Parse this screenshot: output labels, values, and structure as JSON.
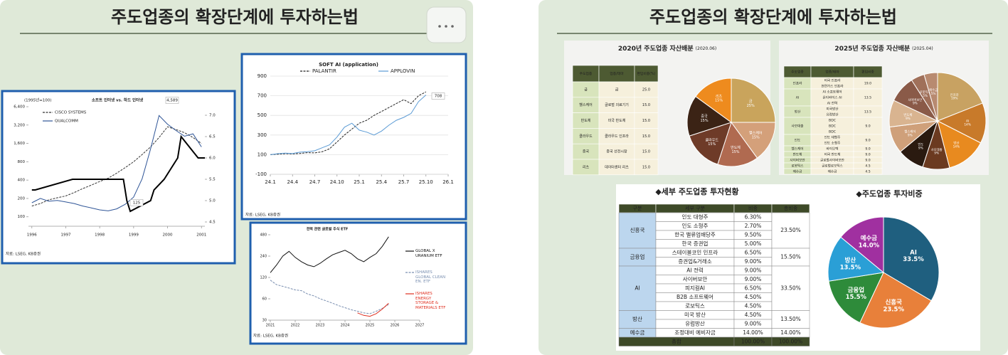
{
  "left_panel": {
    "title": "주도업종의 확장단계에 투자하는법",
    "charts": [
      {
        "type": "line",
        "title": "소프트 인터넷 vs. 하드 인터넷",
        "note": "(1995년=100)",
        "log": true,
        "x": [
          1996,
          1996.25,
          1996.5,
          1996.75,
          1997,
          1997.25,
          1997.5,
          1997.75,
          1998,
          1998.25,
          1998.5,
          1998.75,
          1999,
          1999.25,
          1999.5,
          1999.75,
          2000,
          2000.25,
          2000.5,
          2000.75,
          2001
        ],
        "xlim": [
          1995.9,
          2001.1
        ],
        "xticks": [
          1996,
          1997,
          1998,
          1999,
          2000,
          2001
        ],
        "ylim": [
          70,
          6400
        ],
        "yticks": [
          {
            "value": 6400,
            "label": "6,400"
          },
          {
            "value": 3200,
            "label": "3,200"
          },
          {
            "value": 1600,
            "label": "1,600"
          },
          800,
          400,
          200,
          100
        ],
        "y2lim": [
          4.4,
          7.2
        ],
        "y2ticks": [
          {
            "value": 7,
            "label": "7.0"
          },
          6.5,
          {
            "value": 6,
            "label": "6.0"
          },
          5.5,
          {
            "value": 5,
            "label": "5.0"
          },
          4.5
        ],
        "series": [
          {
            "name": "CISCO SYSTEMS",
            "color": "#333333",
            "dashed": true,
            "values": [
              150,
              165,
              190,
              205,
              220,
              250,
              290,
              330,
              380,
              430,
              520,
              640,
              800,
              1050,
              1400,
              2000,
              3000,
              2700,
              2400,
              2000,
              1600
            ]
          },
          {
            "name": "QUALCOMM",
            "color": "#2f5597",
            "values": [
              170,
              200,
              180,
              185,
              175,
              165,
              150,
              140,
              130,
              125,
              135,
              160,
              210,
              420,
              1300,
              4589,
              3300,
              2600,
              2100,
              2300,
              1400
            ]
          },
          {
            "color": "#000000",
            "axis": "y2",
            "x": [
              1996,
              1996.1,
              1997.2,
              1998.7,
              1998.8,
              1998.9,
              1999.5,
              1999.6,
              1999.9,
              2000.1,
              2000.3,
              2000.4,
              2000.9,
              2001.1
            ],
            "values": [
              5.25,
              5.25,
              5.5,
              5.5,
              5.0,
              4.75,
              5.0,
              5.25,
              5.5,
              5.75,
              6.0,
              6.5,
              6.0,
              6.0
            ]
          }
        ],
        "annotations": [
          "4,589",
          "125"
        ],
        "source": "자료: LSEG, KB증권"
      },
      {
        "type": "line",
        "title": "SOFT AI (application)",
        "grid": true,
        "x": [
          0,
          1,
          2,
          3,
          4,
          5,
          6,
          7,
          8,
          9,
          10,
          11,
          12,
          13,
          14,
          15,
          16,
          17,
          18,
          19,
          20,
          21
        ],
        "xlim": [
          0,
          24
        ],
        "xticks": [
          {
            "value": 0,
            "label": "24.1"
          },
          {
            "value": 3,
            "label": "24.4"
          },
          {
            "value": 6,
            "label": "24.7"
          },
          {
            "value": 9,
            "label": "24.10"
          },
          {
            "value": 12,
            "label": "25.1"
          },
          {
            "value": 15,
            "label": "25.4"
          },
          {
            "value": 18,
            "label": "25.7"
          },
          {
            "value": 21,
            "label": "25.10"
          },
          {
            "value": 24,
            "label": "26.1"
          }
        ],
        "ylim": [
          -100,
          900
        ],
        "yticks": [
          900,
          700,
          500,
          300,
          100,
          -100
        ],
        "series": [
          {
            "name": "PALANTIR",
            "color": "#222222",
            "dashed": true,
            "values": [
              100,
              105,
              110,
              108,
              112,
              120,
              118,
              130,
              160,
              230,
              300,
              360,
              420,
              450,
              500,
              540,
              580,
              620,
              660,
              620,
              700,
              740
            ]
          },
          {
            "name": "APPLOVIN",
            "color": "#5b9bd5",
            "values": [
              100,
              110,
              115,
              112,
              125,
              130,
              140,
              170,
              200,
              280,
              380,
              420,
              350,
              330,
              300,
              340,
              400,
              450,
              480,
              520,
              640,
              708
            ]
          }
        ],
        "annotations": [
          "708"
        ],
        "source": "자료: LSEG, KB증권"
      },
      {
        "type": "line",
        "title": "전력 관련 글로벌 주식 ETF",
        "log": true,
        "x": [
          2021,
          2021.25,
          2021.5,
          2021.75,
          2022,
          2022.25,
          2022.5,
          2022.75,
          2023,
          2023.25,
          2023.5,
          2023.75,
          2024,
          2024.25,
          2024.5,
          2024.75,
          2025,
          2025.25,
          2025.5,
          2025.75
        ],
        "xlim": [
          2021,
          2027
        ],
        "xticks": [
          2021,
          2022,
          2023,
          2024,
          2025,
          2026,
          2027
        ],
        "ylim": [
          30,
          480
        ],
        "yticks": [
          480,
          240,
          120,
          60,
          30
        ],
        "series": [
          {
            "name": "GLOBAL X URANIUM ETF",
            "color": "#111111",
            "values": [
              140,
              180,
              240,
              280,
              230,
              200,
              180,
              170,
              190,
              220,
              250,
              270,
              290,
              260,
              220,
              200,
              230,
              260,
              330,
              450
            ]
          },
          {
            "name": "ISHARES GLOBAL CLEAN EN. ETF",
            "color": "#7a8fb0",
            "dashed": true,
            "values": [
              110,
              95,
              90,
              85,
              80,
              78,
              70,
              66,
              60,
              56,
              52,
              48,
              45,
              42,
              40,
              38,
              37,
              40,
              44,
              50
            ]
          },
          {
            "name": "ISHARES ENERGY STORAGE & MATERIALS ETF",
            "color": "#e03020",
            "values": [
              null,
              null,
              null,
              null,
              null,
              null,
              null,
              null,
              null,
              null,
              null,
              null,
              null,
              null,
              38,
              35,
              34,
              37,
              43,
              52
            ]
          }
        ],
        "source": "자료: LSEG, KB증권"
      }
    ]
  },
  "right_panel": {
    "title": "주도업종의 확장단계에 투자하는법",
    "allocation_2020": {
      "title": "2020년 주도업종 자산배분",
      "date": "(2020.06)",
      "headers": [
        "주도업종",
        "업종/테마",
        "편입비중(%)"
      ],
      "rows": [
        [
          "금",
          "금",
          "25.0"
        ],
        [
          "헬스케어",
          "글로벌 의료기기",
          "15.0"
        ],
        [
          "반도체",
          "미국 반도체",
          "15.0"
        ],
        [
          "클라우드",
          "클라우드 인프라",
          "15.0"
        ],
        [
          "중국",
          "중국 선전시장",
          "15.0"
        ],
        [
          "리츠",
          "데이터센터 리츠",
          "15.0"
        ]
      ],
      "pie": {
        "type": "pie",
        "labels": [
          "금",
          "헬스케어",
          "반도체",
          "클라우드",
          "중국",
          "리츠"
        ],
        "values": [
          25,
          15,
          15,
          15,
          15,
          15
        ],
        "value_labels": [
          "25%",
          "15%",
          "15%",
          "15%",
          "15%",
          "15%"
        ],
        "colors": [
          "#c9a45c",
          "#d4a07a",
          "#b06a50",
          "#6e3b28",
          "#3b2315",
          "#ee8b1e"
        ]
      }
    },
    "allocation_2025": {
      "title": "2025년 주도업종 자산배분",
      "date": "(2025.04)",
      "headers": [
        "주도업종",
        "업종/테마",
        "편입비중"
      ],
      "rows": [
        [
          "인프라",
          [
            "미국 인프라",
            "천연가스 인프라"
          ],
          "19.0"
        ],
        [
          "AI",
          [
            "AI 소프트웨어",
            "온디바이스 AI",
            "AI 전력"
          ],
          "13.5"
        ],
        [
          "방산",
          [
            "미국방산",
            "유럽방산"
          ],
          "13.5"
        ],
        [
          "사모대출",
          [
            "BDC",
            "BDC",
            "BDC"
          ],
          "9.0"
        ],
        [
          "인도",
          [
            "인도 대형주",
            "인도 소형주"
          ],
          "9.0"
        ],
        [
          "헬스케어",
          [
            "바이오텍"
          ],
          "9.0"
        ],
        [
          "반도체",
          [
            "미국 반도체"
          ],
          "9.0"
        ],
        [
          "사이버보안",
          [
            "글로벌사이버보안"
          ],
          "9.0"
        ],
        [
          "로봇틱스",
          [
            "글로벌로보틱스"
          ],
          "4.5"
        ],
        [
          "예수금",
          [
            "예수금"
          ],
          "4.5"
        ]
      ],
      "pie": {
        "type": "pie",
        "labels": [
          "인프라",
          "AI",
          "방산",
          "사모대출",
          "인도",
          "헬스케어",
          "반도체",
          "사이버보안",
          "로봇틱스",
          "예수금"
        ],
        "values": [
          19,
          13.5,
          13.5,
          9,
          9,
          9,
          9,
          9,
          4.5,
          4.5
        ],
        "value_labels": [
          "19%",
          "14%",
          "14%",
          "9%",
          "9%",
          "9%",
          "9%",
          "9%",
          "5%",
          "5%"
        ],
        "colors": [
          "#c8a262",
          "#c87a2a",
          "#e88a1f",
          "#6b3a20",
          "#2a1a10",
          "#cfa07a",
          "#d9b490",
          "#8a5a48",
          "#a0705a",
          "#b88a70"
        ]
      }
    },
    "detail": {
      "title": "◆세부 주도업종 투자현황",
      "headers": [
        "구분",
        "세부 구분",
        "비중",
        "총비중"
      ],
      "groups": [
        {
          "name": "신흥국",
          "total": "23.50%",
          "items": [
            [
              "인도 대형주",
              "6.30%"
            ],
            [
              "인도 소형주",
              "2.70%"
            ],
            [
              "한국 밸류업배당주",
              "9.50%"
            ],
            [
              "한국 증권업",
              "5.00%"
            ]
          ]
        },
        {
          "name": "금융업",
          "total": "15.50%",
          "items": [
            [
              "스테이블코인 인프라",
              "6.50%"
            ],
            [
              "증권업&거래소",
              "9.00%"
            ]
          ]
        },
        {
          "name": "AI",
          "total": "33.50%",
          "items": [
            [
              "AI 전력",
              "9.00%"
            ],
            [
              "사이버보안",
              "9.00%"
            ],
            [
              "피지컬AI",
              "6.50%"
            ],
            [
              "B2B 소프트웨어",
              "4.50%"
            ],
            [
              "로보틱스",
              "4.50%"
            ]
          ]
        },
        {
          "name": "방산",
          "total": "13.50%",
          "items": [
            [
              "미국 방산",
              "4.50%"
            ],
            [
              "유럽방산",
              "9.00%"
            ]
          ]
        },
        {
          "name": "예수금",
          "total": "14.00%",
          "items": [
            [
              "조정대비 예비자금",
              "14.00%"
            ]
          ]
        }
      ],
      "footer": [
        "총합",
        "100.00%",
        "100.00%"
      ]
    },
    "weights": {
      "title": "◆주도업종 투자비중",
      "pie": {
        "type": "pie",
        "labels": [
          "AI",
          "신흥국",
          "금융업",
          "방산",
          "예수금"
        ],
        "values": [
          33.5,
          23.5,
          15.5,
          13.5,
          14.0
        ],
        "value_labels": [
          "33.5%",
          "23.5%",
          "15.5%",
          "13.5%",
          "14.0%"
        ],
        "colors": [
          "#1f5f7f",
          "#e8803a",
          "#2e8b3a",
          "#2a9fd6",
          "#a030a0"
        ]
      }
    }
  }
}
